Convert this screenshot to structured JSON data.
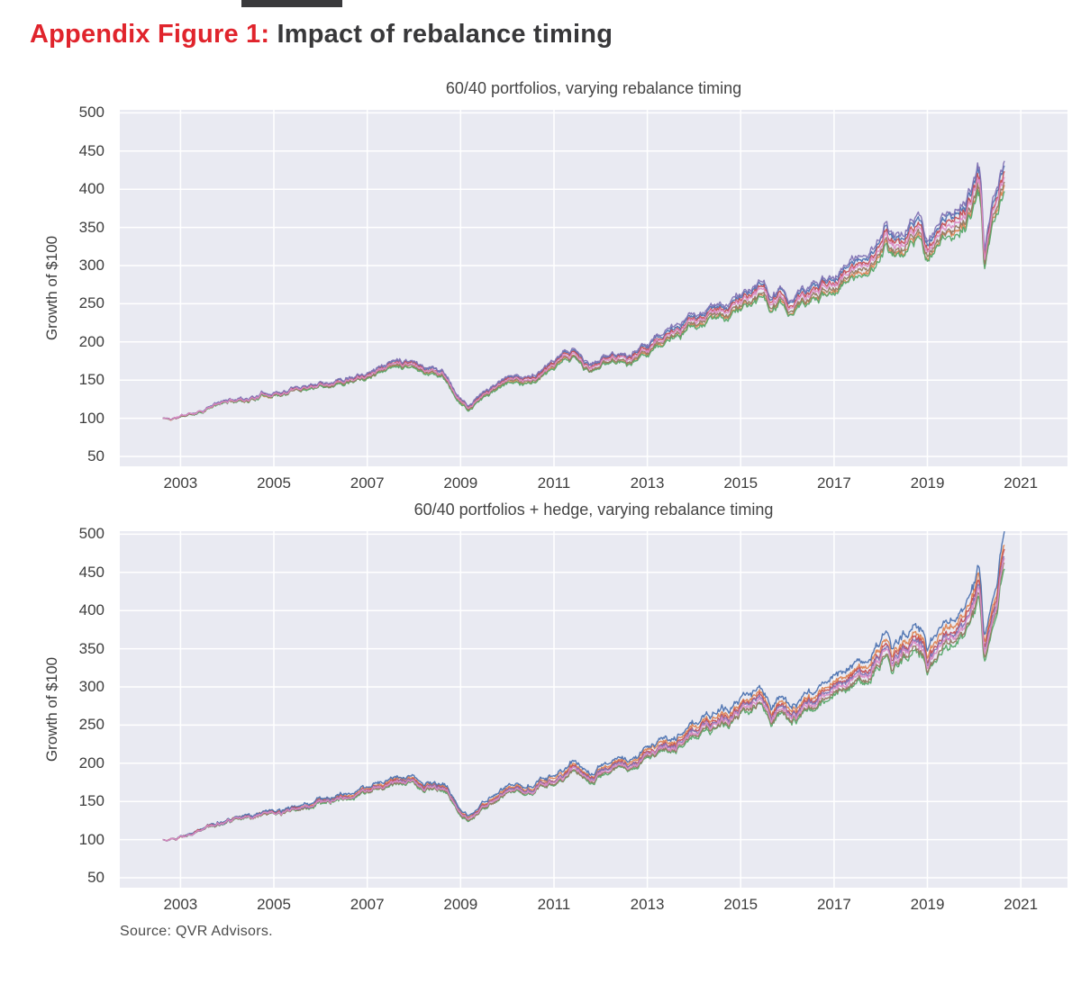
{
  "figure": {
    "label": "Appendix Figure 1:",
    "title": " Impact of rebalance timing",
    "accent_color": "#e0242c",
    "title_color": "#38383a",
    "source": "Source: QVR Advisors."
  },
  "chart_data": [
    {
      "type": "line",
      "title": "60/40 portfolios, varying rebalance timing",
      "ylabel": "Growth of $100",
      "x_ticks": [
        2003,
        2005,
        2007,
        2009,
        2011,
        2013,
        2015,
        2017,
        2019,
        2021
      ],
      "y_ticks": [
        50,
        100,
        150,
        200,
        250,
        300,
        350,
        400,
        450,
        500
      ],
      "xlim": [
        2001.7,
        2022.0
      ],
      "ylim": [
        37,
        504
      ],
      "grid": true,
      "legend": "none",
      "plot_bg": "#e9eaf2",
      "grid_color": "#ffffff",
      "x_start": 2002.62,
      "x_end": 2020.65,
      "points_per_year": 52,
      "noise": {
        "seed": 11,
        "shared_amp": 0.035,
        "jitter_amp": 0.01,
        "series_amp": 0.01,
        "series_jitter": 0.006
      },
      "anchors": [
        [
          2002.62,
          100
        ],
        [
          2002.8,
          99
        ],
        [
          2003.0,
          102
        ],
        [
          2003.25,
          106
        ],
        [
          2003.5,
          112
        ],
        [
          2003.75,
          117
        ],
        [
          2004.0,
          122
        ],
        [
          2004.25,
          124
        ],
        [
          2004.5,
          126
        ],
        [
          2004.75,
          130
        ],
        [
          2005.0,
          133
        ],
        [
          2005.25,
          134
        ],
        [
          2005.5,
          138
        ],
        [
          2005.75,
          142
        ],
        [
          2006.0,
          146
        ],
        [
          2006.25,
          148
        ],
        [
          2006.5,
          150
        ],
        [
          2006.75,
          156
        ],
        [
          2007.0,
          160
        ],
        [
          2007.25,
          165
        ],
        [
          2007.5,
          170
        ],
        [
          2007.75,
          173
        ],
        [
          2007.95,
          175
        ],
        [
          2008.2,
          166
        ],
        [
          2008.4,
          163
        ],
        [
          2008.6,
          159
        ],
        [
          2008.75,
          149
        ],
        [
          2008.9,
          131
        ],
        [
          2009.05,
          120
        ],
        [
          2009.17,
          113
        ],
        [
          2009.35,
          122
        ],
        [
          2009.5,
          130
        ],
        [
          2009.75,
          140
        ],
        [
          2010.0,
          147
        ],
        [
          2010.2,
          153
        ],
        [
          2010.4,
          149
        ],
        [
          2010.55,
          152
        ],
        [
          2010.75,
          158
        ],
        [
          2011.0,
          167
        ],
        [
          2011.2,
          176
        ],
        [
          2011.4,
          184
        ],
        [
          2011.55,
          176
        ],
        [
          2011.65,
          168
        ],
        [
          2011.8,
          164
        ],
        [
          2012.0,
          172
        ],
        [
          2012.2,
          178
        ],
        [
          2012.4,
          181
        ],
        [
          2012.6,
          177
        ],
        [
          2012.8,
          183
        ],
        [
          2013.0,
          194
        ],
        [
          2013.25,
          202
        ],
        [
          2013.5,
          208
        ],
        [
          2013.75,
          214
        ],
        [
          2014.0,
          224
        ],
        [
          2014.25,
          231
        ],
        [
          2014.5,
          237
        ],
        [
          2014.75,
          243
        ],
        [
          2015.0,
          251
        ],
        [
          2015.2,
          258
        ],
        [
          2015.45,
          266
        ],
        [
          2015.65,
          248
        ],
        [
          2015.85,
          257
        ],
        [
          2016.05,
          247
        ],
        [
          2016.2,
          251
        ],
        [
          2016.4,
          259
        ],
        [
          2016.6,
          264
        ],
        [
          2016.8,
          270
        ],
        [
          2017.0,
          280
        ],
        [
          2017.25,
          288
        ],
        [
          2017.5,
          296
        ],
        [
          2017.75,
          305
        ],
        [
          2018.0,
          330
        ],
        [
          2018.1,
          340
        ],
        [
          2018.25,
          322
        ],
        [
          2018.45,
          330
        ],
        [
          2018.6,
          338
        ],
        [
          2018.75,
          348
        ],
        [
          2018.9,
          340
        ],
        [
          2019.0,
          315
        ],
        [
          2019.15,
          332
        ],
        [
          2019.3,
          342
        ],
        [
          2019.5,
          352
        ],
        [
          2019.65,
          360
        ],
        [
          2019.8,
          368
        ],
        [
          2019.95,
          385
        ],
        [
          2020.08,
          408
        ],
        [
          2020.14,
          398
        ],
        [
          2020.22,
          307
        ],
        [
          2020.3,
          335
        ],
        [
          2020.4,
          360
        ],
        [
          2020.5,
          385
        ],
        [
          2020.58,
          405
        ],
        [
          2020.65,
          418
        ]
      ],
      "series": [
        {
          "color": "#4C72B0",
          "spread": 0.034,
          "start_value": 100,
          "final_value": 432
        },
        {
          "color": "#DD8452",
          "spread": -0.032,
          "start_value": 100,
          "final_value": 405
        },
        {
          "color": "#55A868",
          "spread": -0.044,
          "start_value": 100,
          "final_value": 400
        },
        {
          "color": "#937860",
          "spread": -0.018,
          "start_value": 100,
          "final_value": 410
        },
        {
          "color": "#C44E52",
          "spread": 0.016,
          "start_value": 100,
          "final_value": 425
        },
        {
          "color": "#8172B3",
          "spread": 0.048,
          "start_value": 100,
          "final_value": 438
        },
        {
          "color": "#DA8BC3",
          "spread": 0.002,
          "start_value": 100,
          "final_value": 419
        }
      ]
    },
    {
      "type": "line",
      "title": "60/40 portfolios + hedge, varying rebalance timing",
      "ylabel": "Growth of $100",
      "x_ticks": [
        2003,
        2005,
        2007,
        2009,
        2011,
        2013,
        2015,
        2017,
        2019,
        2021
      ],
      "y_ticks": [
        50,
        100,
        150,
        200,
        250,
        300,
        350,
        400,
        450,
        500
      ],
      "xlim": [
        2001.7,
        2022.0
      ],
      "ylim": [
        37,
        504
      ],
      "grid": true,
      "legend": "none",
      "plot_bg": "#e9eaf2",
      "grid_color": "#ffffff",
      "x_start": 2002.62,
      "x_end": 2020.65,
      "points_per_year": 52,
      "noise": {
        "seed": 29,
        "shared_amp": 0.035,
        "jitter_amp": 0.01,
        "series_amp": 0.01,
        "series_jitter": 0.006
      },
      "anchors": [
        [
          2002.62,
          100
        ],
        [
          2002.8,
          99
        ],
        [
          2003.0,
          103
        ],
        [
          2003.25,
          108
        ],
        [
          2003.5,
          114
        ],
        [
          2003.75,
          119
        ],
        [
          2004.0,
          124
        ],
        [
          2004.25,
          127
        ],
        [
          2004.5,
          129
        ],
        [
          2004.75,
          133
        ],
        [
          2005.0,
          136
        ],
        [
          2005.25,
          137
        ],
        [
          2005.5,
          141
        ],
        [
          2005.75,
          145
        ],
        [
          2006.0,
          150
        ],
        [
          2006.25,
          152
        ],
        [
          2006.5,
          154
        ],
        [
          2006.75,
          160
        ],
        [
          2007.0,
          165
        ],
        [
          2007.25,
          170
        ],
        [
          2007.5,
          175
        ],
        [
          2007.75,
          179
        ],
        [
          2007.95,
          181
        ],
        [
          2008.2,
          173
        ],
        [
          2008.4,
          171
        ],
        [
          2008.6,
          168
        ],
        [
          2008.75,
          159
        ],
        [
          2008.9,
          144
        ],
        [
          2009.05,
          134
        ],
        [
          2009.17,
          127
        ],
        [
          2009.35,
          136
        ],
        [
          2009.5,
          143
        ],
        [
          2009.75,
          152
        ],
        [
          2010.0,
          159
        ],
        [
          2010.2,
          165
        ],
        [
          2010.4,
          161
        ],
        [
          2010.55,
          164
        ],
        [
          2010.75,
          170
        ],
        [
          2011.0,
          179
        ],
        [
          2011.2,
          188
        ],
        [
          2011.4,
          196
        ],
        [
          2011.55,
          190
        ],
        [
          2011.65,
          184
        ],
        [
          2011.8,
          180
        ],
        [
          2012.0,
          188
        ],
        [
          2012.2,
          194
        ],
        [
          2012.4,
          197
        ],
        [
          2012.6,
          193
        ],
        [
          2012.8,
          199
        ],
        [
          2013.0,
          211
        ],
        [
          2013.25,
          219
        ],
        [
          2013.5,
          226
        ],
        [
          2013.75,
          232
        ],
        [
          2014.0,
          242
        ],
        [
          2014.25,
          249
        ],
        [
          2014.5,
          255
        ],
        [
          2014.75,
          261
        ],
        [
          2015.0,
          269
        ],
        [
          2015.2,
          276
        ],
        [
          2015.45,
          284
        ],
        [
          2015.65,
          266
        ],
        [
          2015.85,
          275
        ],
        [
          2016.05,
          264
        ],
        [
          2016.2,
          268
        ],
        [
          2016.4,
          276
        ],
        [
          2016.6,
          282
        ],
        [
          2016.8,
          288
        ],
        [
          2017.0,
          298
        ],
        [
          2017.25,
          306
        ],
        [
          2017.5,
          314
        ],
        [
          2017.75,
          323
        ],
        [
          2018.0,
          345
        ],
        [
          2018.1,
          355
        ],
        [
          2018.25,
          337
        ],
        [
          2018.45,
          345
        ],
        [
          2018.6,
          352
        ],
        [
          2018.75,
          362
        ],
        [
          2018.9,
          355
        ],
        [
          2019.0,
          330
        ],
        [
          2019.15,
          348
        ],
        [
          2019.3,
          358
        ],
        [
          2019.5,
          368
        ],
        [
          2019.65,
          376
        ],
        [
          2019.8,
          384
        ],
        [
          2019.95,
          400
        ],
        [
          2020.08,
          428
        ],
        [
          2020.14,
          415
        ],
        [
          2020.22,
          340
        ],
        [
          2020.3,
          372
        ],
        [
          2020.4,
          398
        ],
        [
          2020.5,
          420
        ],
        [
          2020.58,
          448
        ],
        [
          2020.65,
          465
        ]
      ],
      "series": [
        {
          "color": "#55A868",
          "spread": -0.04,
          "start_value": 100,
          "final_value": 446
        },
        {
          "color": "#937860",
          "spread": -0.028,
          "start_value": 100,
          "final_value": 452
        },
        {
          "color": "#DD8452",
          "spread": 0.03,
          "start_value": 100,
          "final_value": 479
        },
        {
          "color": "#4C72B0",
          "spread": 0.058,
          "start_value": 100,
          "final_value": 492
        },
        {
          "color": "#C44E52",
          "spread": 0.012,
          "start_value": 100,
          "final_value": 471
        },
        {
          "color": "#8172B3",
          "spread": 0.0,
          "start_value": 100,
          "final_value": 465
        },
        {
          "color": "#DA8BC3",
          "spread": -0.012,
          "start_value": 100,
          "final_value": 459
        }
      ]
    }
  ]
}
